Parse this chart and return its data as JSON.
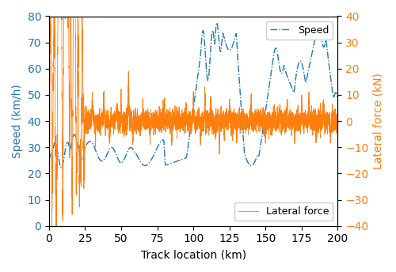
{
  "title": "",
  "xlabel": "Track location (km)",
  "ylabel_left": "Speed (km/h)",
  "ylabel_right": "Lateral force (kN)",
  "legend_speed": "Speed",
  "legend_lateral": "Lateral force",
  "x_min": 0,
  "x_max": 200,
  "y_left_min": 0,
  "y_left_max": 80,
  "y_right_min": -40,
  "y_right_max": 40,
  "xticks": [
    0,
    25,
    50,
    75,
    100,
    125,
    150,
    175,
    200
  ],
  "yticks_left": [
    0,
    10,
    20,
    30,
    40,
    50,
    60,
    70,
    80
  ],
  "yticks_right": [
    -40,
    -30,
    -20,
    -10,
    0,
    10,
    20,
    30,
    40
  ],
  "speed_color": "#1f77b4",
  "lateral_color": "#ff7f0e",
  "figsize": [
    5.0,
    3.44
  ],
  "dpi": 100
}
